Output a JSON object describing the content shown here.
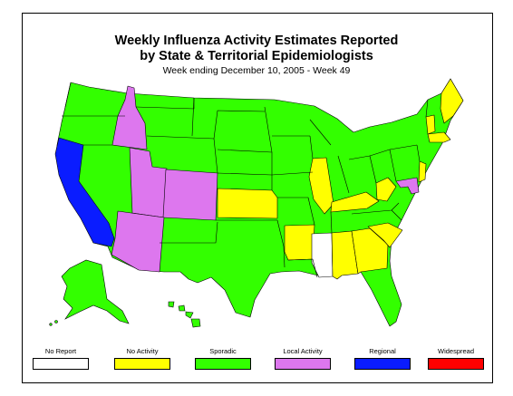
{
  "header": {
    "title_line1": "Weekly Influenza Activity Estimates Reported",
    "title_line2": "by State & Territorial Epidemiologists",
    "subtitle": "Week ending December 10, 2005 - Week 49"
  },
  "colors": {
    "no_report": "#ffffff",
    "no_activity": "#ffff00",
    "sporadic": "#33ff00",
    "local": "#dd77ee",
    "regional": "#0a1cff",
    "widespread": "#ff0000",
    "outline": "#000000"
  },
  "legend": [
    {
      "label": "No Report",
      "key": "no_report"
    },
    {
      "label": "No Activity",
      "key": "no_activity"
    },
    {
      "label": "Sporadic",
      "key": "sporadic"
    },
    {
      "label": "Local Activity",
      "key": "local"
    },
    {
      "label": "Regional",
      "key": "regional"
    },
    {
      "label": "Widespread",
      "key": "widespread"
    }
  ],
  "map": {
    "regional": [
      "California"
    ],
    "local_activity": [
      "Idaho",
      "Utah",
      "Colorado",
      "Arizona",
      "Maryland"
    ],
    "no_activity": [
      "Maine",
      "Vermont",
      "Massachusetts",
      "New Jersey",
      "Illinois",
      "Kansas",
      "Arkansas",
      "Kentucky",
      "West Virginia",
      "Alabama",
      "Georgia",
      "South Carolina"
    ],
    "no_report": [
      "Mississippi"
    ],
    "sporadic": [
      "Washington",
      "Oregon",
      "Nevada",
      "Montana",
      "Wyoming",
      "New Mexico",
      "North Dakota",
      "South Dakota",
      "Nebraska",
      "Oklahoma",
      "Texas",
      "Minnesota",
      "Iowa",
      "Missouri",
      "Louisiana",
      "Wisconsin",
      "Michigan",
      "Indiana",
      "Ohio",
      "Tennessee",
      "Florida",
      "North Carolina",
      "Virginia",
      "Pennsylvania",
      "New York",
      "New Hampshire",
      "Connecticut",
      "Delaware",
      "Alaska",
      "Hawaii"
    ]
  }
}
